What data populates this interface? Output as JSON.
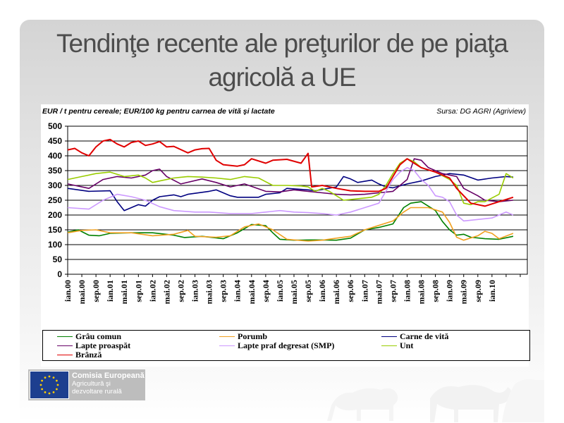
{
  "slide": {
    "title": "Tendinţe recente ale preţurilor de pe piaţa agricolă a UE",
    "unit_note": "EUR / t pentru cereale; EUR/100 kg pentru carnea de vită şi lactate",
    "source_note": "Sursa: DG AGRI (Agriview)"
  },
  "footer": {
    "org_name": "Comisia Europeană",
    "dept_line1": "Agricultură şi",
    "dept_line2": "dezvoltare rurală",
    "flag_icon": "eu-flag-icon"
  },
  "colors": {
    "grau": "#008000",
    "porumb": "#f0a020",
    "carne": "#000080",
    "lapte": "#660066",
    "smp": "#cc99ff",
    "unt": "#99cc00",
    "branza": "#e00000"
  },
  "chart_data": {
    "type": "line",
    "ylim": [
      0,
      500
    ],
    "yticks": [
      0,
      50,
      100,
      150,
      200,
      250,
      300,
      350,
      400,
      450,
      500
    ],
    "x_range": [
      0,
      130
    ],
    "xtick_labels": [
      "ian.00",
      "mai.00",
      "sep.00",
      "ian.01",
      "mai.01",
      "sep.01",
      "ian.02",
      "mai.02",
      "sep.02",
      "ian.03",
      "mai.03",
      "sep.03",
      "ian.04",
      "mai.04",
      "sep.04",
      "ian.05",
      "mai.05",
      "sep.05",
      "ian.06",
      "mai.06",
      "sep.06",
      "ian.07",
      "mai.07",
      "sep.07",
      "ian.08",
      "mai.08",
      "sep.08",
      "ian.09",
      "mai.09",
      "sep.09",
      "ian.10"
    ],
    "xtick_months": [
      0,
      4,
      8,
      12,
      16,
      20,
      24,
      28,
      32,
      36,
      40,
      44,
      48,
      52,
      56,
      60,
      64,
      68,
      72,
      76,
      80,
      84,
      88,
      92,
      96,
      100,
      104,
      108,
      112,
      116,
      120
    ],
    "grid": true,
    "legend_position": "bottom",
    "series": [
      {
        "name": "Grâu comun",
        "color_key": "grau",
        "points": [
          [
            0,
            142
          ],
          [
            3,
            150
          ],
          [
            6,
            132
          ],
          [
            9,
            130
          ],
          [
            12,
            138
          ],
          [
            18,
            140
          ],
          [
            24,
            140
          ],
          [
            30,
            132
          ],
          [
            33,
            124
          ],
          [
            38,
            128
          ],
          [
            44,
            120
          ],
          [
            48,
            140
          ],
          [
            52,
            168
          ],
          [
            56,
            164
          ],
          [
            58,
            140
          ],
          [
            60,
            118
          ],
          [
            64,
            115
          ],
          [
            70,
            116
          ],
          [
            76,
            115
          ],
          [
            80,
            122
          ],
          [
            84,
            150
          ],
          [
            88,
            158
          ],
          [
            92,
            170
          ],
          [
            95,
            225
          ],
          [
            97,
            240
          ],
          [
            100,
            245
          ],
          [
            102,
            230
          ],
          [
            104,
            215
          ],
          [
            106,
            178
          ],
          [
            108,
            150
          ],
          [
            110,
            132
          ],
          [
            112,
            135
          ],
          [
            114,
            125
          ],
          [
            118,
            120
          ],
          [
            122,
            118
          ],
          [
            126,
            128
          ]
        ]
      },
      {
        "name": "Porumb",
        "color_key": "porumb",
        "points": [
          [
            0,
            140
          ],
          [
            4,
            148
          ],
          [
            8,
            150
          ],
          [
            12,
            140
          ],
          [
            18,
            140
          ],
          [
            24,
            130
          ],
          [
            30,
            135
          ],
          [
            34,
            148
          ],
          [
            36,
            128
          ],
          [
            42,
            125
          ],
          [
            46,
            130
          ],
          [
            50,
            160
          ],
          [
            54,
            170
          ],
          [
            58,
            150
          ],
          [
            62,
            118
          ],
          [
            68,
            112
          ],
          [
            72,
            115
          ],
          [
            76,
            122
          ],
          [
            80,
            128
          ],
          [
            84,
            150
          ],
          [
            88,
            165
          ],
          [
            92,
            180
          ],
          [
            95,
            210
          ],
          [
            97,
            225
          ],
          [
            102,
            225
          ],
          [
            106,
            210
          ],
          [
            108,
            175
          ],
          [
            110,
            125
          ],
          [
            112,
            115
          ],
          [
            116,
            130
          ],
          [
            118,
            145
          ],
          [
            120,
            138
          ],
          [
            122,
            120
          ],
          [
            126,
            138
          ]
        ]
      },
      {
        "name": "Carne de vită",
        "color_key": "carne",
        "points": [
          [
            0,
            290
          ],
          [
            6,
            280
          ],
          [
            12,
            282
          ],
          [
            14,
            245
          ],
          [
            16,
            215
          ],
          [
            18,
            225
          ],
          [
            20,
            235
          ],
          [
            22,
            230
          ],
          [
            24,
            250
          ],
          [
            26,
            262
          ],
          [
            30,
            268
          ],
          [
            32,
            262
          ],
          [
            34,
            270
          ],
          [
            40,
            280
          ],
          [
            42,
            285
          ],
          [
            46,
            265
          ],
          [
            48,
            260
          ],
          [
            54,
            260
          ],
          [
            56,
            270
          ],
          [
            60,
            275
          ],
          [
            62,
            290
          ],
          [
            68,
            285
          ],
          [
            70,
            282
          ],
          [
            76,
            295
          ],
          [
            78,
            330
          ],
          [
            80,
            322
          ],
          [
            82,
            310
          ],
          [
            86,
            318
          ],
          [
            88,
            305
          ],
          [
            90,
            295
          ],
          [
            92,
            292
          ],
          [
            96,
            305
          ],
          [
            100,
            315
          ],
          [
            104,
            330
          ],
          [
            108,
            340
          ],
          [
            112,
            335
          ],
          [
            116,
            318
          ],
          [
            120,
            325
          ],
          [
            124,
            330
          ],
          [
            126,
            328
          ]
        ]
      },
      {
        "name": "Lapte proaspăt",
        "color_key": "lapte",
        "points": [
          [
            0,
            305
          ],
          [
            6,
            290
          ],
          [
            10,
            320
          ],
          [
            14,
            330
          ],
          [
            18,
            325
          ],
          [
            22,
            335
          ],
          [
            24,
            350
          ],
          [
            26,
            355
          ],
          [
            28,
            330
          ],
          [
            32,
            305
          ],
          [
            38,
            322
          ],
          [
            42,
            310
          ],
          [
            46,
            295
          ],
          [
            50,
            305
          ],
          [
            56,
            280
          ],
          [
            60,
            278
          ],
          [
            64,
            285
          ],
          [
            68,
            280
          ],
          [
            72,
            275
          ],
          [
            76,
            270
          ],
          [
            80,
            268
          ],
          [
            84,
            270
          ],
          [
            88,
            275
          ],
          [
            92,
            280
          ],
          [
            96,
            320
          ],
          [
            98,
            390
          ],
          [
            100,
            385
          ],
          [
            102,
            360
          ],
          [
            106,
            340
          ],
          [
            110,
            330
          ],
          [
            112,
            290
          ],
          [
            116,
            265
          ],
          [
            118,
            250
          ],
          [
            122,
            245
          ],
          [
            126,
            250
          ]
        ]
      },
      {
        "name": "Lapte praf degresat (SMP)",
        "color_key": "smp",
        "points": [
          [
            0,
            225
          ],
          [
            6,
            220
          ],
          [
            10,
            250
          ],
          [
            14,
            270
          ],
          [
            18,
            262
          ],
          [
            22,
            250
          ],
          [
            26,
            228
          ],
          [
            30,
            215
          ],
          [
            36,
            210
          ],
          [
            40,
            210
          ],
          [
            46,
            205
          ],
          [
            52,
            205
          ],
          [
            56,
            210
          ],
          [
            60,
            215
          ],
          [
            64,
            210
          ],
          [
            68,
            208
          ],
          [
            72,
            205
          ],
          [
            76,
            200
          ],
          [
            80,
            210
          ],
          [
            84,
            225
          ],
          [
            88,
            240
          ],
          [
            90,
            280
          ],
          [
            92,
            320
          ],
          [
            94,
            345
          ],
          [
            96,
            360
          ],
          [
            98,
            350
          ],
          [
            100,
            320
          ],
          [
            102,
            300
          ],
          [
            104,
            265
          ],
          [
            106,
            260
          ],
          [
            108,
            245
          ],
          [
            110,
            200
          ],
          [
            112,
            180
          ],
          [
            116,
            185
          ],
          [
            120,
            190
          ],
          [
            124,
            210
          ],
          [
            126,
            200
          ]
        ]
      },
      {
        "name": "Unt",
        "color_key": "unt",
        "points": [
          [
            0,
            320
          ],
          [
            4,
            330
          ],
          [
            8,
            340
          ],
          [
            12,
            345
          ],
          [
            16,
            330
          ],
          [
            20,
            335
          ],
          [
            22,
            325
          ],
          [
            24,
            310
          ],
          [
            26,
            315
          ],
          [
            30,
            325
          ],
          [
            34,
            330
          ],
          [
            38,
            328
          ],
          [
            42,
            325
          ],
          [
            46,
            320
          ],
          [
            50,
            330
          ],
          [
            54,
            325
          ],
          [
            58,
            300
          ],
          [
            62,
            300
          ],
          [
            66,
            298
          ],
          [
            68,
            295
          ],
          [
            70,
            280
          ],
          [
            72,
            290
          ],
          [
            74,
            280
          ],
          [
            76,
            265
          ],
          [
            78,
            250
          ],
          [
            82,
            255
          ],
          [
            86,
            260
          ],
          [
            88,
            270
          ],
          [
            90,
            300
          ],
          [
            92,
            340
          ],
          [
            94,
            375
          ],
          [
            96,
            390
          ],
          [
            98,
            380
          ],
          [
            100,
            360
          ],
          [
            104,
            345
          ],
          [
            108,
            320
          ],
          [
            110,
            300
          ],
          [
            112,
            240
          ],
          [
            114,
            235
          ],
          [
            116,
            245
          ],
          [
            118,
            245
          ],
          [
            122,
            270
          ],
          [
            124,
            340
          ],
          [
            126,
            325
          ]
        ]
      },
      {
        "name": "Brânză",
        "color_key": "branza",
        "points": [
          [
            0,
            420
          ],
          [
            2,
            425
          ],
          [
            4,
            410
          ],
          [
            6,
            400
          ],
          [
            8,
            430
          ],
          [
            10,
            450
          ],
          [
            12,
            455
          ],
          [
            14,
            440
          ],
          [
            16,
            430
          ],
          [
            18,
            445
          ],
          [
            20,
            450
          ],
          [
            22,
            435
          ],
          [
            24,
            440
          ],
          [
            26,
            448
          ],
          [
            28,
            430
          ],
          [
            30,
            432
          ],
          [
            34,
            410
          ],
          [
            36,
            420
          ],
          [
            38,
            424
          ],
          [
            40,
            425
          ],
          [
            42,
            385
          ],
          [
            44,
            370
          ],
          [
            48,
            365
          ],
          [
            50,
            370
          ],
          [
            52,
            390
          ],
          [
            56,
            375
          ],
          [
            58,
            385
          ],
          [
            62,
            388
          ],
          [
            66,
            375
          ],
          [
            68,
            408
          ],
          [
            69,
            295
          ],
          [
            72,
            300
          ],
          [
            76,
            290
          ],
          [
            80,
            282
          ],
          [
            84,
            280
          ],
          [
            88,
            280
          ],
          [
            90,
            290
          ],
          [
            92,
            330
          ],
          [
            94,
            370
          ],
          [
            96,
            390
          ],
          [
            98,
            375
          ],
          [
            100,
            360
          ],
          [
            104,
            345
          ],
          [
            108,
            325
          ],
          [
            110,
            290
          ],
          [
            114,
            240
          ],
          [
            118,
            230
          ],
          [
            122,
            245
          ],
          [
            126,
            260
          ]
        ]
      }
    ]
  }
}
